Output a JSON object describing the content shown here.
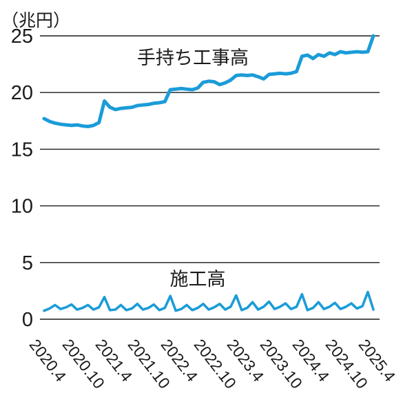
{
  "chart": {
    "unit_label": "（兆円）",
    "background_color": "#ffffff",
    "text_color": "#1a1a1a",
    "line_color": "#1b9cd8",
    "gridline_color": "#1a1a1a"
  },
  "chart_data": {
    "type": "line",
    "title": "",
    "ylabel": "（兆円）",
    "ylim": [
      0,
      25
    ],
    "yticks": [
      0,
      5,
      10,
      15,
      20,
      25
    ],
    "grid": "horizontal",
    "legend_position": "inline-annotations",
    "x": [
      "2020.4",
      "2020.5",
      "2020.6",
      "2020.7",
      "2020.8",
      "2020.9",
      "2020.10",
      "2020.11",
      "2020.12",
      "2021.1",
      "2021.2",
      "2021.3",
      "2021.4",
      "2021.5",
      "2021.6",
      "2021.7",
      "2021.8",
      "2021.9",
      "2021.10",
      "2021.11",
      "2021.12",
      "2022.1",
      "2022.2",
      "2022.3",
      "2022.4",
      "2022.5",
      "2022.6",
      "2022.7",
      "2022.8",
      "2022.9",
      "2022.10",
      "2022.11",
      "2022.12",
      "2023.1",
      "2023.2",
      "2023.3",
      "2023.4",
      "2023.5",
      "2023.6",
      "2023.7",
      "2023.8",
      "2023.9",
      "2023.10",
      "2023.11",
      "2023.12",
      "2024.1",
      "2024.2",
      "2024.3",
      "2024.4",
      "2024.5",
      "2024.6",
      "2024.7",
      "2024.8",
      "2024.9",
      "2024.10",
      "2024.11",
      "2024.12",
      "2025.1",
      "2025.2",
      "2025.3",
      "2025.4"
    ],
    "xticks": [
      "2020.4",
      "2020.10",
      "2021.4",
      "2021.10",
      "2022.4",
      "2022.10",
      "2023.4",
      "2023.10",
      "2024.4",
      "2024.10",
      "2025.4"
    ],
    "series": [
      {
        "name": "手持ち工事高",
        "values": [
          17.7,
          17.45,
          17.3,
          17.2,
          17.15,
          17.1,
          17.15,
          17.05,
          17.0,
          17.1,
          17.35,
          19.25,
          18.7,
          18.5,
          18.6,
          18.65,
          18.7,
          18.85,
          18.9,
          18.95,
          19.05,
          19.1,
          19.2,
          20.25,
          20.3,
          20.35,
          20.3,
          20.25,
          20.4,
          20.9,
          21.0,
          20.95,
          20.7,
          20.85,
          21.1,
          21.5,
          21.55,
          21.5,
          21.55,
          21.4,
          21.2,
          21.6,
          21.65,
          21.7,
          21.65,
          21.7,
          21.85,
          23.2,
          23.3,
          23.0,
          23.35,
          23.2,
          23.5,
          23.35,
          23.6,
          23.5,
          23.55,
          23.6,
          23.55,
          23.6,
          25.0
        ]
      },
      {
        "name": "施工高",
        "values": [
          0.75,
          0.95,
          1.25,
          0.9,
          1.05,
          1.3,
          0.85,
          1.0,
          1.25,
          0.85,
          1.05,
          1.95,
          0.8,
          0.85,
          1.25,
          0.8,
          0.95,
          1.35,
          0.85,
          1.0,
          1.3,
          0.8,
          1.0,
          2.05,
          0.75,
          0.9,
          1.25,
          0.8,
          1.0,
          1.35,
          0.85,
          1.05,
          1.35,
          0.85,
          1.1,
          2.1,
          0.8,
          1.0,
          1.5,
          0.85,
          1.1,
          1.55,
          0.9,
          1.1,
          1.4,
          0.9,
          1.1,
          2.2,
          0.8,
          1.0,
          1.5,
          0.9,
          1.1,
          1.45,
          0.9,
          1.1,
          1.4,
          0.95,
          1.15,
          2.4,
          0.85
        ]
      }
    ]
  }
}
